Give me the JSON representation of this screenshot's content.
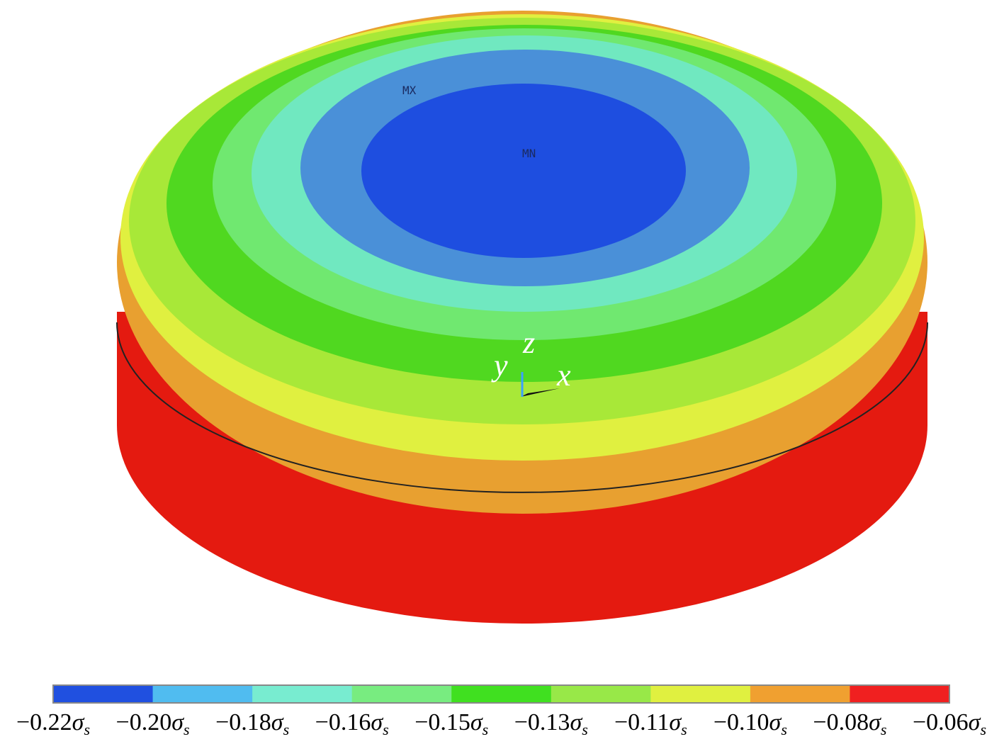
{
  "annotations": {
    "max_marker": "MX",
    "min_marker": "MN",
    "axis_z": "z",
    "axis_y": "y",
    "axis_x": "x"
  },
  "colorbar": {
    "labels": [
      "−0.22",
      "−0.20",
      "−0.18",
      "−0.16",
      "−0.15",
      "−0.13",
      "−0.11",
      "−0.10",
      "−0.08",
      "−0.06"
    ],
    "symbol": "σ",
    "subscript": "s",
    "colors": [
      "#2050e0",
      "#50bcf0",
      "#78ecd0",
      "#78ec80",
      "#40e020",
      "#98e848",
      "#e0f040",
      "#f0a030",
      "#f02020"
    ]
  }
}
